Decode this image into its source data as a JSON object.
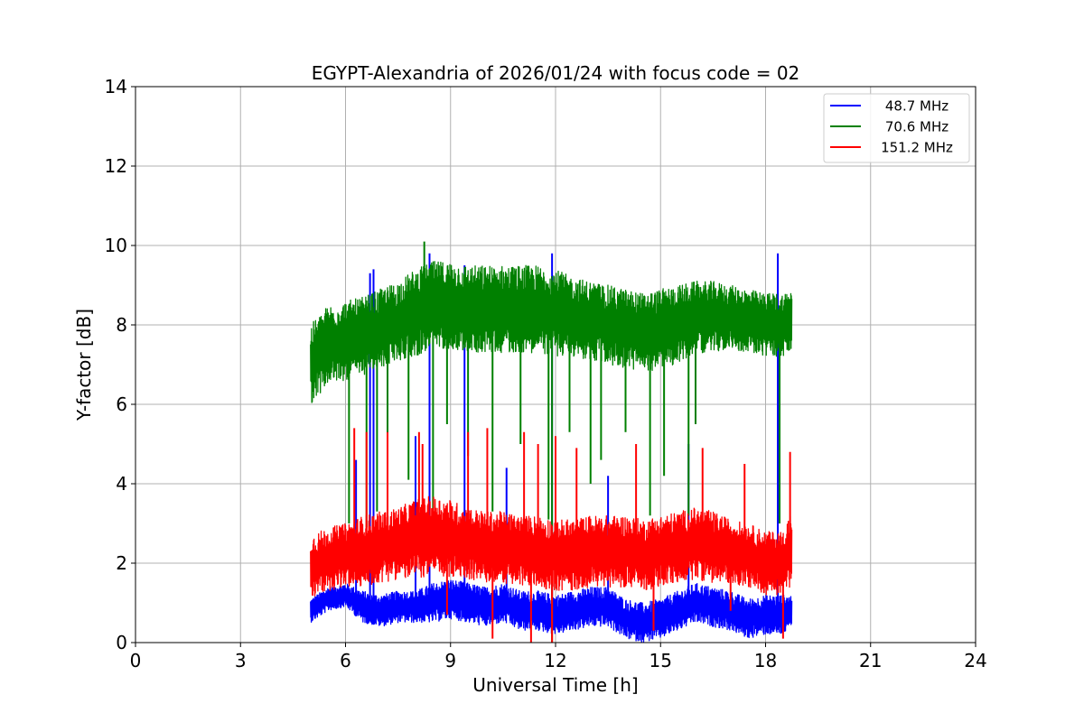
{
  "chart_data": {
    "type": "line",
    "title": "EGYPT-Alexandria of 2026/01/24 with focus code = 02",
    "xlabel": "Universal Time [h]",
    "ylabel": "Y-factor [dB]",
    "xlim": [
      0,
      24
    ],
    "ylim": [
      0,
      14
    ],
    "xticks": [
      "0",
      "3",
      "6",
      "9",
      "12",
      "15",
      "18",
      "21",
      "24"
    ],
    "yticks": [
      "0",
      "2",
      "4",
      "6",
      "8",
      "10",
      "12",
      "14"
    ],
    "grid": true,
    "legend_position": "top-right",
    "series": [
      {
        "name": "48.7 MHz",
        "color": "#0000ff",
        "x": [
          5.0,
          5.5,
          6.0,
          6.5,
          7.0,
          7.5,
          8.0,
          8.5,
          9.0,
          9.5,
          10.0,
          10.5,
          11.0,
          11.5,
          12.0,
          12.5,
          13.0,
          13.5,
          14.0,
          14.5,
          15.0,
          15.5,
          16.0,
          16.5,
          17.0,
          17.5,
          18.0,
          18.5,
          18.75
        ],
        "center": [
          0.8,
          1.1,
          1.2,
          0.9,
          0.8,
          0.9,
          0.9,
          1.0,
          1.1,
          1.0,
          0.9,
          1.0,
          0.8,
          0.8,
          0.7,
          0.8,
          0.9,
          0.9,
          0.6,
          0.5,
          0.6,
          0.8,
          1.0,
          0.9,
          0.8,
          0.6,
          0.7,
          0.7,
          0.8
        ],
        "spread": [
          0.3,
          0.3,
          0.3,
          0.4,
          0.4,
          0.4,
          0.4,
          0.5,
          0.5,
          0.5,
          0.5,
          0.5,
          0.5,
          0.5,
          0.5,
          0.5,
          0.5,
          0.5,
          0.5,
          0.5,
          0.5,
          0.5,
          0.5,
          0.5,
          0.5,
          0.5,
          0.5,
          0.5,
          0.4
        ],
        "spikes": [
          [
            6.7,
            9.3
          ],
          [
            6.8,
            9.4
          ],
          [
            8.4,
            9.8
          ],
          [
            9.4,
            9.5
          ],
          [
            11.9,
            9.8
          ],
          [
            18.35,
            9.8
          ],
          [
            6.3,
            4.6
          ],
          [
            8.0,
            5.2
          ],
          [
            10.6,
            4.4
          ],
          [
            13.5,
            4.2
          ],
          [
            15.8,
            5.0
          ]
        ]
      },
      {
        "name": "70.6 MHz",
        "color": "#008000",
        "x": [
          5.0,
          5.5,
          6.0,
          6.5,
          7.0,
          7.5,
          8.0,
          8.5,
          9.0,
          9.5,
          10.0,
          10.5,
          11.0,
          11.5,
          12.0,
          12.5,
          13.0,
          13.5,
          14.0,
          14.5,
          15.0,
          15.5,
          16.0,
          16.5,
          17.0,
          17.5,
          18.0,
          18.5,
          18.75
        ],
        "center": [
          7.0,
          7.5,
          7.6,
          7.7,
          7.9,
          8.1,
          8.3,
          8.5,
          8.5,
          8.4,
          8.4,
          8.4,
          8.4,
          8.4,
          8.3,
          8.2,
          8.1,
          8.0,
          7.9,
          7.8,
          7.9,
          8.0,
          8.2,
          8.2,
          8.2,
          8.1,
          8.0,
          8.0,
          8.1
        ],
        "spread": [
          1.0,
          1.0,
          1.0,
          1.0,
          1.0,
          1.0,
          1.1,
          1.1,
          1.1,
          1.1,
          1.1,
          1.1,
          1.1,
          1.1,
          1.1,
          1.0,
          1.0,
          1.0,
          1.0,
          1.0,
          1.0,
          1.0,
          0.9,
          0.9,
          0.8,
          0.8,
          0.8,
          0.8,
          0.8
        ],
        "spikes": [
          [
            8.25,
            10.1
          ],
          [
            6.1,
            3.0
          ],
          [
            6.6,
            2.9
          ],
          [
            6.9,
            3.3
          ],
          [
            7.2,
            4.9
          ],
          [
            7.8,
            4.1
          ],
          [
            8.5,
            3.2
          ],
          [
            8.9,
            5.5
          ],
          [
            9.5,
            4.7
          ],
          [
            10.2,
            3.3
          ],
          [
            11.0,
            5.0
          ],
          [
            11.8,
            3.1
          ],
          [
            11.9,
            0.0
          ],
          [
            12.4,
            5.3
          ],
          [
            13.0,
            4.0
          ],
          [
            13.3,
            4.6
          ],
          [
            14.0,
            5.3
          ],
          [
            14.7,
            3.2
          ],
          [
            15.1,
            4.2
          ],
          [
            15.8,
            3.2
          ],
          [
            16.0,
            5.5
          ],
          [
            18.4,
            3.0
          ]
        ]
      },
      {
        "name": "151.2 MHz",
        "color": "#ff0000",
        "x": [
          5.0,
          5.5,
          6.0,
          6.5,
          7.0,
          7.5,
          8.0,
          8.5,
          9.0,
          9.5,
          10.0,
          10.5,
          11.0,
          11.5,
          12.0,
          12.5,
          13.0,
          13.5,
          14.0,
          14.5,
          15.0,
          15.5,
          16.0,
          16.5,
          17.0,
          17.5,
          18.0,
          18.5,
          18.75
        ],
        "center": [
          1.9,
          2.1,
          2.2,
          2.3,
          2.4,
          2.5,
          2.6,
          2.7,
          2.6,
          2.5,
          2.4,
          2.4,
          2.3,
          2.3,
          2.2,
          2.2,
          2.3,
          2.3,
          2.3,
          2.2,
          2.3,
          2.4,
          2.5,
          2.4,
          2.3,
          2.2,
          2.0,
          2.0,
          2.4
        ],
        "spread": [
          0.8,
          0.8,
          0.8,
          0.9,
          0.9,
          0.9,
          1.0,
          1.0,
          1.0,
          0.9,
          0.9,
          0.9,
          0.9,
          0.9,
          0.9,
          0.9,
          0.9,
          0.9,
          0.9,
          0.9,
          0.9,
          0.9,
          0.9,
          0.9,
          0.8,
          0.8,
          0.8,
          0.8,
          1.0
        ],
        "spikes": [
          [
            6.25,
            5.4
          ],
          [
            6.6,
            5.3
          ],
          [
            7.2,
            5.3
          ],
          [
            8.1,
            5.3
          ],
          [
            8.2,
            5.0
          ],
          [
            9.5,
            5.3
          ],
          [
            10.05,
            5.4
          ],
          [
            11.1,
            5.3
          ],
          [
            11.5,
            5.0
          ],
          [
            12.0,
            5.2
          ],
          [
            12.6,
            4.9
          ],
          [
            14.3,
            5.0
          ],
          [
            16.2,
            4.9
          ],
          [
            17.4,
            4.5
          ],
          [
            18.7,
            4.8
          ],
          [
            8.9,
            0.7
          ],
          [
            10.2,
            0.1
          ],
          [
            11.3,
            0.0
          ],
          [
            11.9,
            0.0
          ],
          [
            14.8,
            0.3
          ],
          [
            17.0,
            0.8
          ],
          [
            18.5,
            0.1
          ]
        ]
      }
    ]
  }
}
